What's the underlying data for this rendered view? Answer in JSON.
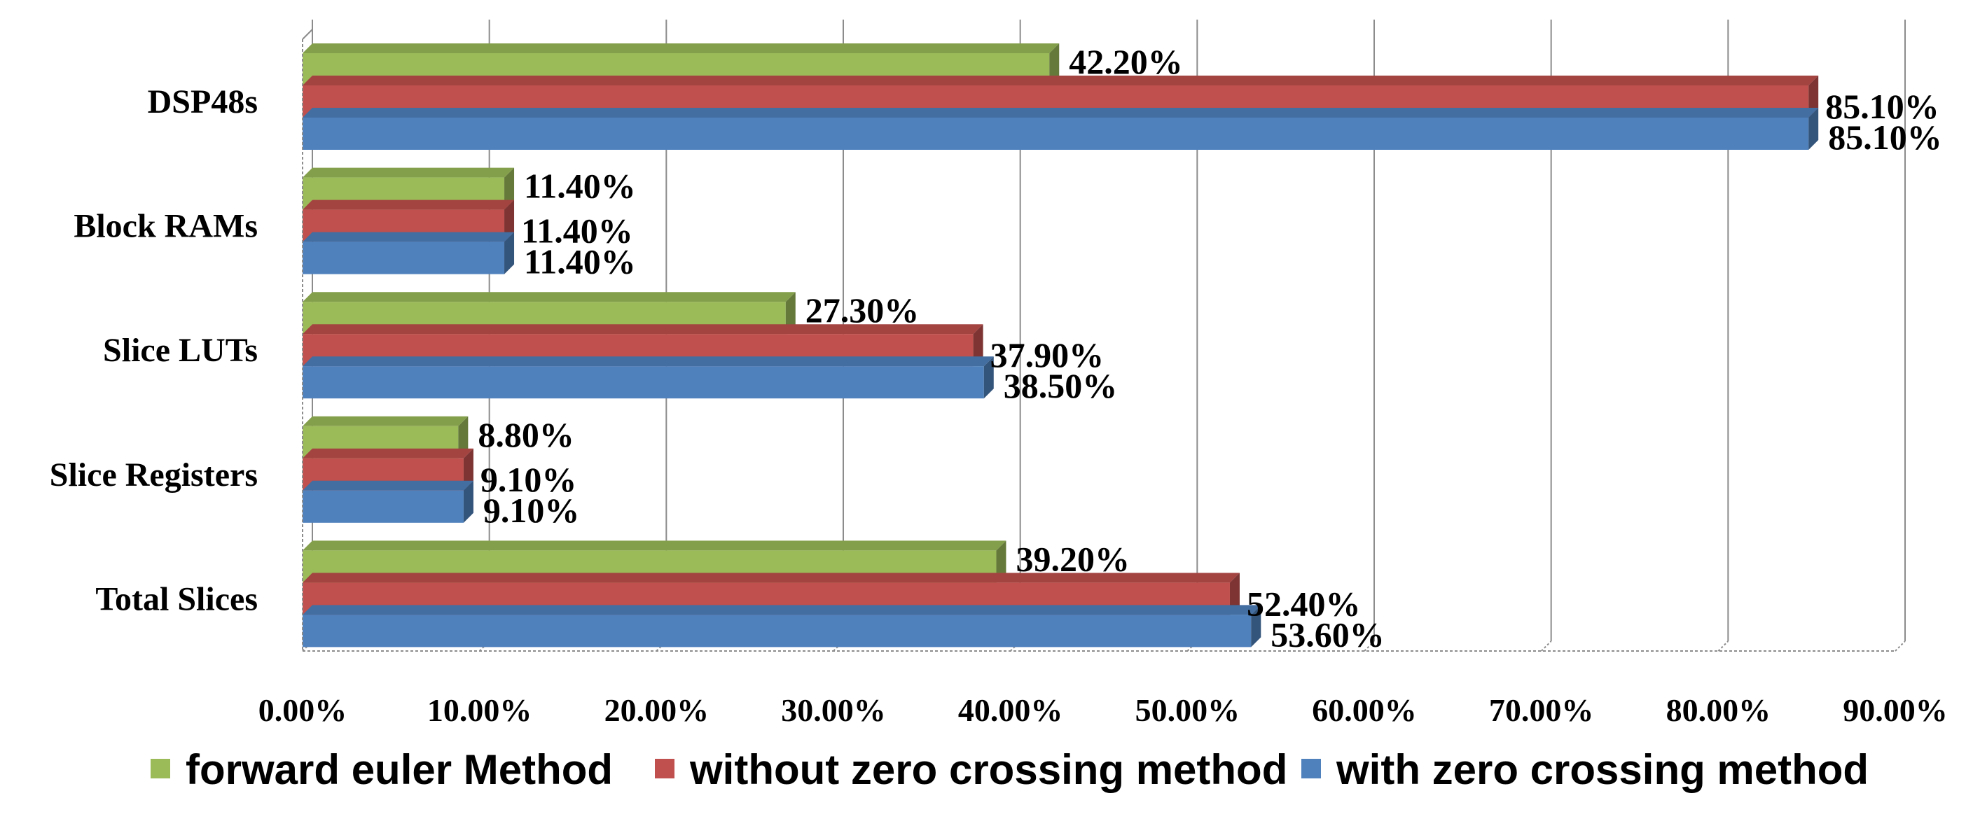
{
  "chart_data": {
    "type": "bar",
    "orientation": "horizontal",
    "title": "",
    "xlabel": "",
    "ylabel": "",
    "categories": [
      "DSP48s",
      "Block RAMs",
      "Slice LUTs",
      "Slice Registers",
      "Total Slices"
    ],
    "series": [
      {
        "name": "forward euler Method",
        "color": "#9BBB59",
        "values": [
          42.2,
          11.4,
          27.3,
          8.8,
          39.2
        ],
        "labels": [
          "42.20%",
          "11.40%",
          "27.30%",
          "8.80%",
          "39.20%"
        ]
      },
      {
        "name": "without zero crossing method",
        "color": "#C0504D",
        "values": [
          85.1,
          11.4,
          37.9,
          9.1,
          52.4
        ],
        "labels": [
          "85.10%",
          "11.40%",
          "37.90%",
          "9.10%",
          "52.40%"
        ]
      },
      {
        "name": "with zero crossing method",
        "color": "#4F81BD",
        "values": [
          85.1,
          11.4,
          38.5,
          9.1,
          53.6
        ],
        "labels": [
          "85.10%",
          "11.40%",
          "38.50%",
          "9.10%",
          "53.60%"
        ]
      }
    ],
    "xlim": [
      0,
      90
    ],
    "xticks": [
      0,
      10,
      20,
      30,
      40,
      50,
      60,
      70,
      80,
      90
    ],
    "xtick_labels": [
      "0.00%",
      "10.00%",
      "20.00%",
      "30.00%",
      "40.00%",
      "50.00%",
      "60.00%",
      "70.00%",
      "80.00%",
      "90.00%"
    ],
    "grid": true,
    "legend_position": "bottom"
  }
}
